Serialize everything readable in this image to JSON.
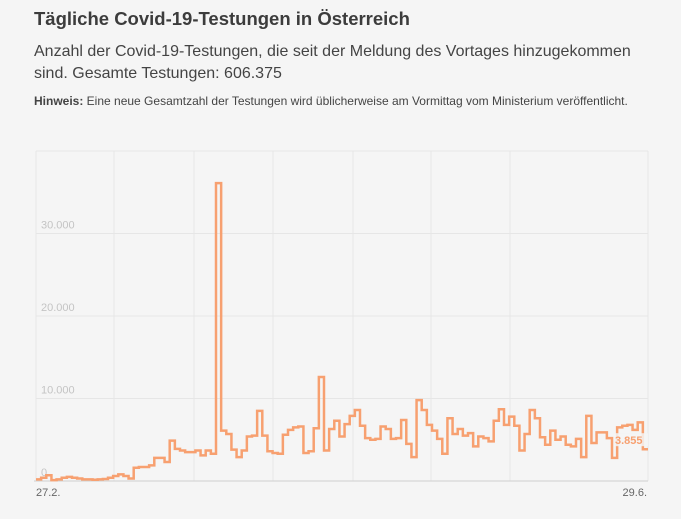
{
  "header": {
    "title": "Tägliche Covid-19-Testungen in Österreich",
    "subtitle": "Anzahl der Covid-19-Testungen, die seit der Meldung des Vortages hinzugekommen sind. Gesamte Testungen: 606.375",
    "note_label": "Hinweis:",
    "note_text": " Eine neue Gesamtzahl der Testungen wird üblicherweise am Vormittag vom Ministerium veröffentlicht."
  },
  "chart_data": {
    "type": "line",
    "step": true,
    "color": "#f7a070",
    "x_start_label": "27.2.",
    "x_end_label": "29.6.",
    "yticks": [
      0,
      10000,
      20000,
      30000
    ],
    "ytick_labels": [
      "0",
      "10.000",
      "20.000",
      "30.000"
    ],
    "ylim": [
      0,
      40000
    ],
    "grid": true,
    "last_value_label": "3.855",
    "values": [
      200,
      400,
      700,
      100,
      200,
      400,
      500,
      400,
      300,
      200,
      200,
      150,
      200,
      250,
      400,
      600,
      800,
      600,
      300,
      1600,
      1700,
      1700,
      1900,
      2800,
      2800,
      2300,
      4900,
      3900,
      3700,
      3500,
      3500,
      3700,
      3100,
      3700,
      3300,
      36100,
      6100,
      5700,
      3800,
      2900,
      3700,
      5400,
      5500,
      8500,
      5500,
      3600,
      3400,
      3300,
      5600,
      6200,
      6500,
      6600,
      3400,
      3600,
      6400,
      12600,
      3700,
      6300,
      7300,
      5400,
      6900,
      7900,
      8600,
      6700,
      5200,
      5000,
      5100,
      6600,
      6300,
      5100,
      5200,
      7400,
      4500,
      2900,
      9800,
      8600,
      6800,
      6100,
      5100,
      3300,
      7600,
      5700,
      6300,
      5500,
      5800,
      4200,
      5400,
      5200,
      4800,
      7300,
      8700,
      6800,
      7800,
      6700,
      3700,
      5700,
      8600,
      7600,
      5300,
      4400,
      6100,
      5000,
      5400,
      4400,
      4200,
      5100,
      2900,
      7900,
      4600,
      5900,
      5900,
      5200,
      2800,
      6500,
      6700,
      6800,
      6200,
      7100,
      3855
    ]
  }
}
